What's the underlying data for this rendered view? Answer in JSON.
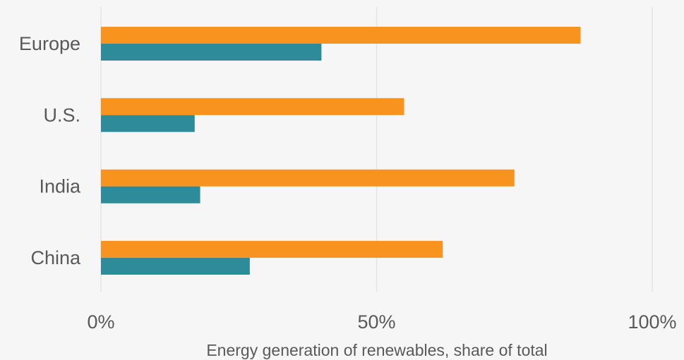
{
  "chart_data": {
    "type": "bar",
    "orientation": "horizontal",
    "categories": [
      "Europe",
      "U.S.",
      "India",
      "China"
    ],
    "series": [
      {
        "values": [
          87,
          55,
          75,
          62
        ],
        "color": "#f7931e"
      },
      {
        "values": [
          40,
          17,
          18,
          27
        ],
        "color": "#2e8b99"
      }
    ],
    "xlabel": "Energy generation of renewables, share of total",
    "ylabel": "",
    "xlim": [
      0,
      100
    ],
    "xticks": [
      "0%",
      "50%",
      "100%"
    ],
    "grid": true,
    "legend": "none"
  }
}
